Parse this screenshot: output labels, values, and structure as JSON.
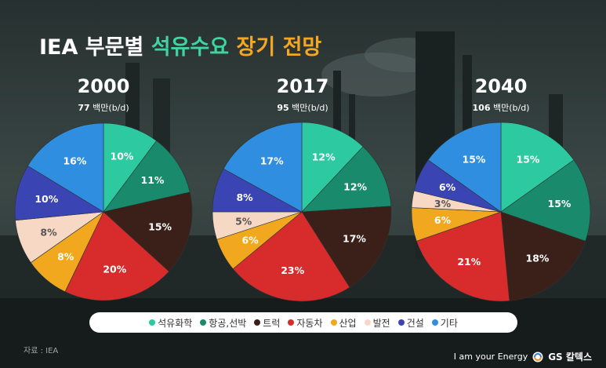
{
  "title": {
    "part1": "IEA 부문별",
    "part2": "석유수요",
    "part3": "장기 전망"
  },
  "colors": {
    "석유화학": "#2dc9a0",
    "항공,선박": "#1a8a6c",
    "트럭": "#3b2019",
    "자동차": "#d82b2b",
    "산업": "#f2a81e",
    "발전": "#f7d8c4",
    "건설": "#3a45b3",
    "기타": "#2f8ee0"
  },
  "chart_data": [
    {
      "type": "pie",
      "title": "2000",
      "subtitle_value": "77",
      "subtitle_unit": "백만(b/d)",
      "categories": [
        "석유화학",
        "항공,선박",
        "트럭",
        "자동차",
        "산업",
        "발전",
        "건설",
        "기타"
      ],
      "values": [
        10,
        11,
        15,
        20,
        8,
        8,
        10,
        16
      ],
      "labels": [
        "10%",
        "11%",
        "15%",
        "20%",
        "8%",
        "8%",
        "10%",
        "16%"
      ]
    },
    {
      "type": "pie",
      "title": "2017",
      "subtitle_value": "95",
      "subtitle_unit": "백만(b/d)",
      "categories": [
        "석유화학",
        "항공,선박",
        "트럭",
        "자동차",
        "산업",
        "발전",
        "건설",
        "기타"
      ],
      "values": [
        12,
        12,
        17,
        23,
        6,
        5,
        8,
        17
      ],
      "labels": [
        "12%",
        "12%",
        "17%",
        "23%",
        "6%",
        "5%",
        "8%",
        "17%"
      ]
    },
    {
      "type": "pie",
      "title": "2040",
      "subtitle_value": "106",
      "subtitle_unit": "백만(b/d)",
      "categories": [
        "석유화학",
        "항공,선박",
        "트럭",
        "자동차",
        "산업",
        "발전",
        "건설",
        "기타"
      ],
      "values": [
        15,
        15,
        18,
        21,
        6,
        3,
        6,
        15
      ],
      "labels": [
        "15%",
        "15%",
        "18%",
        "21%",
        "6%",
        "3%",
        "6%",
        "15%"
      ]
    }
  ],
  "legend": [
    "석유화학",
    "항공,선박",
    "트럭",
    "자동차",
    "산업",
    "발전",
    "건설",
    "기타"
  ],
  "source": "자료 : IEA",
  "brand": {
    "slogan": "I am your Energy",
    "logo_text": "GS 칼텍스"
  }
}
